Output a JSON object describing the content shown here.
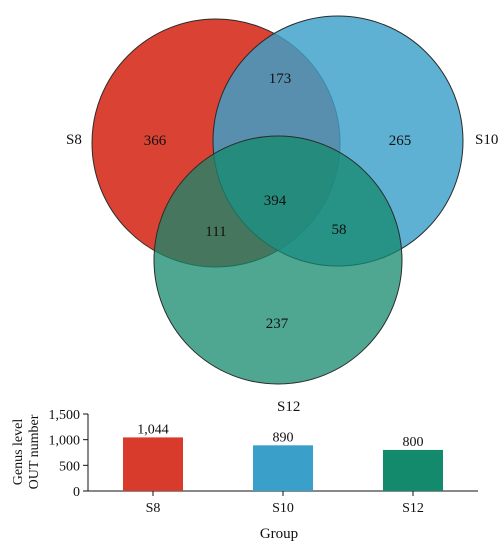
{
  "venn": {
    "sets": [
      {
        "name": "S8",
        "color": "#d83a2c"
      },
      {
        "name": "S10",
        "color": "#3aa0c9"
      },
      {
        "name": "S12",
        "color": "#148a6c"
      }
    ],
    "regions": {
      "S8_only": "366",
      "S10_only": "265",
      "S12_only": "237",
      "S8_S10": "173",
      "S8_S12": "111",
      "S10_S12": "58",
      "S8_S10_S12": "394"
    }
  },
  "chart_data": {
    "type": "bar",
    "categories": [
      "S8",
      "S10",
      "S12"
    ],
    "values": [
      1044,
      890,
      800
    ],
    "value_labels": [
      "1,044",
      "890",
      "800"
    ],
    "colors": [
      "#d83a2c",
      "#3aa0c9",
      "#148a6c"
    ],
    "xlabel": "Group",
    "ylabel_lines": [
      "Genus level",
      "OUT number"
    ],
    "ylim": [
      0,
      1500
    ],
    "yticks": [
      0,
      500,
      1000,
      1500
    ],
    "ytick_labels": [
      "0",
      "500",
      "1,000",
      "1,500"
    ]
  }
}
